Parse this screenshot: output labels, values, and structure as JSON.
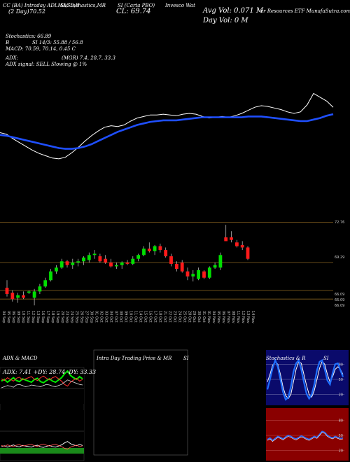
{
  "header": {
    "line1_left": "CC (BA) Intraday ADLMACD,B",
    "line1_mid": "SI,Stochastics,MR",
    "line1_mid2": "SI (Carta PBO)",
    "line1_right": "Invesco Wat",
    "day_label": "(2 Day)",
    "day_value": "70.52",
    "cl_label": "CL: 69.74",
    "avg_vol": "Avg Vol: 0.071 M",
    "day_vol": "Day Vol: 0 M",
    "etf": "er Resources ETF MunafaSutra.com",
    "stoch_label": "Stochastics: 66.89",
    "b_label": "B",
    "si_label": "SI 14/3: 55.88 / 56.8",
    "macd_label": "MACD: 70.59, 70.14, 0.45 C",
    "adx_label": "ADX:",
    "mgr_label": "(MGR) 7.4, 28.7, 33.3",
    "adx_signal": "ADX signal: SELL Slowing @ 1%"
  },
  "price_axis": {
    "high_label": "72.76",
    "mid_label": "69.29",
    "low1": "66.09",
    "low2": "66.09",
    "low3": "66.09"
  },
  "dates": [
    "04 Sep",
    "05 Sep",
    "06 Sep",
    "09 Sep",
    "10 Sep",
    "11 Sep",
    "12 Sep",
    "13 Sep",
    "16 Sep",
    "17 Sep",
    "18 Sep",
    "19 Sep",
    "20 Sep",
    "23 Sep",
    "24 Sep",
    "25 Sep",
    "26 Sep",
    "27 Sep",
    "30 Sep",
    "01 Oct",
    "02 Oct",
    "03 Oct",
    "04 Oct",
    "07 Oct",
    "08 Oct",
    "09 Oct",
    "10 Oct",
    "11 Oct",
    "14 Oct",
    "15 Oct",
    "16 Oct",
    "17 Oct",
    "18 Oct",
    "21 Oct",
    "22 Oct",
    "23 Oct",
    "24 Oct",
    "25 Oct",
    "28 Oct",
    "29 Oct",
    "30 Oct",
    "31 Oct",
    "01 Nov",
    "04 Nov",
    "05 Nov",
    "06 Nov",
    "07 Nov",
    "08 Nov",
    "11 Nov",
    "12 Nov",
    "13 Nov",
    "14 Nov"
  ],
  "panels": {
    "adx_title": "ADX & MACD",
    "adx_values": "ADX: 7.41 +DY: 28.74 -DY: 33.33",
    "intraday_title": "Intra Day Trading Price & MR",
    "intraday_si": "SI",
    "stoch_title": "Stochastics & R",
    "stoch_si": "SI",
    "stoch_levels": [
      "80",
      "50",
      "20"
    ],
    "rsi_levels": [
      "80",
      "50",
      "20"
    ]
  },
  "chart_data": [
    {
      "type": "line",
      "name": "upper-indicator",
      "series": [
        {
          "values": [
            55,
            53,
            47,
            42,
            37,
            32,
            28,
            25,
            22,
            21,
            23,
            29,
            36,
            44,
            51,
            57,
            62,
            64,
            63,
            65,
            70,
            74,
            76,
            78,
            78,
            79,
            78,
            77,
            79,
            80,
            79,
            76,
            74,
            75,
            76,
            75,
            77,
            80,
            84,
            88,
            90,
            89,
            87,
            85,
            82,
            80,
            82,
            91,
            106,
            101,
            96,
            88
          ]
        },
        {
          "values": [
            52,
            51,
            49,
            47,
            45,
            43,
            41,
            39,
            37,
            35,
            34,
            34,
            35,
            37,
            40,
            44,
            48,
            52,
            56,
            59,
            62,
            65,
            67,
            69,
            70,
            71,
            71,
            71,
            72,
            73,
            74,
            75,
            75,
            75,
            75,
            75,
            75,
            75,
            76,
            76,
            76,
            75,
            74,
            73,
            72,
            71,
            70,
            70,
            72,
            74,
            77,
            79
          ]
        }
      ]
    },
    {
      "type": "candlestick",
      "name": "price",
      "ylim": [
        65.8,
        73.2
      ],
      "candles": [
        {
          "o": 67.3,
          "h": 67.9,
          "l": 66.6,
          "c": 66.8
        },
        {
          "o": 66.9,
          "h": 67.1,
          "l": 66.2,
          "c": 66.4
        },
        {
          "o": 66.5,
          "h": 66.9,
          "l": 66.1,
          "c": 66.7
        },
        {
          "o": 66.7,
          "h": 67.0,
          "l": 66.4,
          "c": 66.5
        },
        {
          "o": 66.9,
          "h": 67.1,
          "l": 66.8,
          "c": 67.0
        },
        {
          "o": 66.5,
          "h": 67.2,
          "l": 65.9,
          "c": 67.0
        },
        {
          "o": 67.0,
          "h": 67.6,
          "l": 66.8,
          "c": 67.4
        },
        {
          "o": 67.4,
          "h": 68.1,
          "l": 67.3,
          "c": 67.9
        },
        {
          "o": 67.9,
          "h": 68.8,
          "l": 67.8,
          "c": 68.6
        },
        {
          "o": 68.6,
          "h": 69.1,
          "l": 68.4,
          "c": 68.9
        },
        {
          "o": 68.9,
          "h": 69.6,
          "l": 68.8,
          "c": 69.4
        },
        {
          "o": 69.4,
          "h": 69.5,
          "l": 68.9,
          "c": 69.1
        },
        {
          "o": 69.1,
          "h": 69.6,
          "l": 68.8,
          "c": 69.3
        },
        {
          "o": 69.3,
          "h": 69.6,
          "l": 69.0,
          "c": 69.4
        },
        {
          "o": 69.4,
          "h": 69.8,
          "l": 69.1,
          "c": 69.7
        },
        {
          "o": 69.5,
          "h": 70.1,
          "l": 69.3,
          "c": 69.9
        },
        {
          "o": 69.9,
          "h": 70.3,
          "l": 69.6,
          "c": 70.0
        },
        {
          "o": 69.8,
          "h": 70.0,
          "l": 69.3,
          "c": 69.4
        },
        {
          "o": 69.6,
          "h": 69.9,
          "l": 69.2,
          "c": 69.3
        },
        {
          "o": 69.3,
          "h": 69.6,
          "l": 68.9,
          "c": 69.0
        },
        {
          "o": 69.0,
          "h": 69.3,
          "l": 68.8,
          "c": 69.1
        },
        {
          "o": 69.1,
          "h": 69.4,
          "l": 68.8,
          "c": 69.3
        },
        {
          "o": 69.3,
          "h": 69.5,
          "l": 69.1,
          "c": 69.2
        },
        {
          "o": 69.2,
          "h": 69.8,
          "l": 69.1,
          "c": 69.6
        },
        {
          "o": 69.6,
          "h": 70.0,
          "l": 69.4,
          "c": 69.9
        },
        {
          "o": 69.9,
          "h": 70.6,
          "l": 69.8,
          "c": 70.4
        },
        {
          "o": 70.4,
          "h": 70.9,
          "l": 70.1,
          "c": 70.2
        },
        {
          "o": 70.2,
          "h": 70.7,
          "l": 69.9,
          "c": 70.6
        },
        {
          "o": 70.6,
          "h": 70.8,
          "l": 70.1,
          "c": 70.3
        },
        {
          "o": 70.3,
          "h": 70.5,
          "l": 69.7,
          "c": 69.8
        },
        {
          "o": 69.8,
          "h": 70.0,
          "l": 69.0,
          "c": 69.2
        },
        {
          "o": 69.2,
          "h": 69.4,
          "l": 68.6,
          "c": 68.8
        },
        {
          "o": 69.3,
          "h": 69.5,
          "l": 68.5,
          "c": 68.6
        },
        {
          "o": 68.6,
          "h": 68.9,
          "l": 67.9,
          "c": 68.2
        },
        {
          "o": 68.2,
          "h": 68.7,
          "l": 67.8,
          "c": 68.4
        },
        {
          "o": 68.0,
          "h": 68.9,
          "l": 67.9,
          "c": 68.7
        },
        {
          "o": 68.6,
          "h": 68.7,
          "l": 68.0,
          "c": 68.1
        },
        {
          "o": 68.1,
          "h": 69.0,
          "l": 68.0,
          "c": 68.9
        },
        {
          "o": 68.9,
          "h": 69.3,
          "l": 68.8,
          "c": 69.1
        },
        {
          "o": 68.9,
          "h": 70.1,
          "l": 68.7,
          "c": 69.9
        },
        {
          "o": 71.3,
          "h": 72.3,
          "l": 71.0,
          "c": 71.0
        },
        {
          "o": 71.3,
          "h": 71.8,
          "l": 70.9,
          "c": 71.1
        },
        {
          "o": 70.9,
          "h": 71.1,
          "l": 70.5,
          "c": 70.6
        },
        {
          "o": 70.7,
          "h": 71.0,
          "l": 70.3,
          "c": 70.5
        },
        {
          "o": 70.5,
          "h": 70.6,
          "l": 69.5,
          "c": 69.6
        }
      ]
    },
    {
      "type": "line",
      "name": "adx-macd",
      "series": [
        {
          "values": [
            42,
            45,
            40,
            44,
            48,
            43,
            41,
            46,
            44,
            42,
            40,
            45,
            47,
            41,
            39,
            43,
            46,
            42,
            40,
            44,
            48,
            55,
            60,
            52,
            48,
            45,
            50,
            46
          ]
        },
        {
          "values": [
            46,
            43,
            48,
            45,
            42,
            47,
            49,
            44,
            46,
            48,
            50,
            45,
            43,
            48,
            51,
            47,
            44,
            48,
            50,
            46,
            42,
            36,
            33,
            40,
            44,
            47,
            42,
            45
          ]
        },
        {
          "values": [
            30,
            32,
            34,
            33,
            31,
            35,
            36,
            34,
            32,
            33,
            35,
            34,
            33,
            32,
            34,
            36,
            35,
            33,
            32,
            34,
            36,
            40,
            44,
            42,
            40,
            38,
            36,
            35
          ]
        }
      ]
    },
    {
      "type": "line",
      "name": "stochastics",
      "levels": [
        80,
        50,
        20
      ],
      "series": [
        {
          "values": [
            45,
            60,
            78,
            85,
            80,
            60,
            35,
            18,
            12,
            20,
            45,
            70,
            85,
            82,
            60,
            38,
            20,
            15,
            28,
            50,
            72,
            86,
            80,
            60,
            45,
            55,
            70,
            75,
            70,
            60
          ]
        },
        {
          "values": [
            30,
            50,
            72,
            88,
            75,
            50,
            25,
            10,
            14,
            35,
            65,
            82,
            88,
            70,
            45,
            22,
            12,
            20,
            40,
            68,
            85,
            88,
            70,
            48,
            40,
            62,
            80,
            82,
            68,
            55
          ]
        }
      ]
    },
    {
      "type": "line",
      "name": "rsi",
      "levels": [
        80,
        50,
        20
      ],
      "series": [
        {
          "values": [
            42,
            45,
            40,
            44,
            48,
            46,
            43,
            47,
            50,
            48,
            45,
            43,
            46,
            49,
            47,
            44,
            42,
            45,
            48,
            46,
            52,
            58,
            56,
            50,
            47,
            45,
            48,
            46,
            44,
            45
          ]
        }
      ]
    }
  ]
}
